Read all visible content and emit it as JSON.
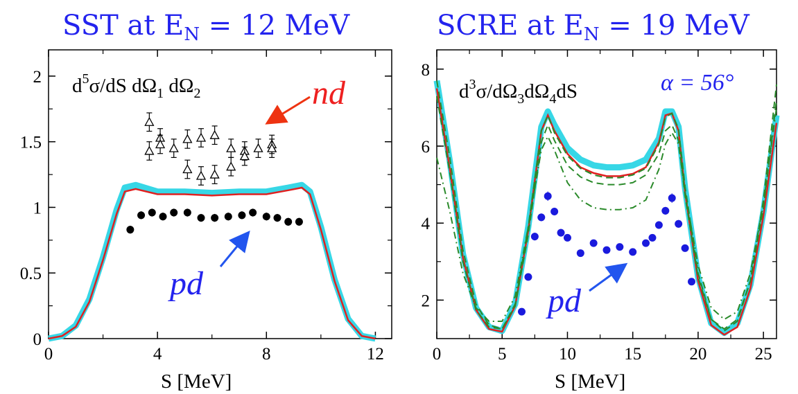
{
  "chart_data": [
    {
      "type": "scatter",
      "title": "SST at E",
      "title_sub": "N",
      "title_rest": " = 12 MeV",
      "xlabel": "S  [MeV]",
      "ylabel": "",
      "xlim": [
        0,
        12.6
      ],
      "ylim": [
        0,
        2.2
      ],
      "xticks": [
        0,
        4,
        8,
        12
      ],
      "xtick_labels": [
        "0",
        "4",
        "8",
        "12"
      ],
      "yticks": [
        0,
        0.5,
        1,
        1.5,
        2
      ],
      "ytick_labels": [
        "0",
        "0.5",
        "1",
        "1.5",
        "2"
      ],
      "annotation_formula": {
        "base": "d",
        "sup": "5",
        "rest": "σ/dS dΩ",
        "sub1": "1",
        "mid": " dΩ",
        "sub2": "2"
      },
      "label_nd": "nd",
      "label_pd": "pd",
      "colors": {
        "band": "#37d7e6",
        "red": "#e02020",
        "nd_arrow": "#ee3311",
        "pd_arrow": "#2255ee",
        "pd_text": "#2323ee",
        "nd_text": "#ee2020"
      },
      "series": [
        {
          "label": "theory band",
          "style": "band",
          "x": [
            0,
            0.5,
            1,
            1.5,
            2,
            2.5,
            2.8,
            3.2,
            4,
            5,
            6,
            7,
            8,
            8.8,
            9.3,
            9.6,
            10,
            10.5,
            11,
            11.5,
            12
          ],
          "y": [
            0,
            0.02,
            0.1,
            0.3,
            0.62,
            0.98,
            1.15,
            1.17,
            1.12,
            1.12,
            1.11,
            1.12,
            1.12,
            1.15,
            1.17,
            1.12,
            0.85,
            0.45,
            0.15,
            0.02,
            0
          ]
        },
        {
          "label": "theory red",
          "style": "red",
          "x": [
            0,
            0.5,
            1,
            1.5,
            2,
            2.5,
            2.8,
            3.2,
            4,
            5,
            6,
            7,
            8,
            8.8,
            9.3,
            9.6,
            10,
            10.5,
            11,
            11.5,
            12
          ],
          "y": [
            0,
            0.02,
            0.09,
            0.28,
            0.6,
            0.95,
            1.12,
            1.14,
            1.1,
            1.1,
            1.09,
            1.1,
            1.1,
            1.13,
            1.15,
            1.1,
            0.83,
            0.44,
            0.14,
            0.02,
            0
          ]
        },
        {
          "label": "pd data",
          "style": "filled-circles",
          "x": [
            3.0,
            3.4,
            3.8,
            4.2,
            4.6,
            5.1,
            5.6,
            6.1,
            6.6,
            7.1,
            7.5,
            8.0,
            8.4,
            8.8,
            9.2
          ],
          "y": [
            0.83,
            0.94,
            0.96,
            0.93,
            0.96,
            0.96,
            0.92,
            0.92,
            0.93,
            0.94,
            0.96,
            0.93,
            0.92,
            0.89,
            0.89
          ],
          "err": [
            0.03,
            0.03,
            0.03,
            0.03,
            0.03,
            0.03,
            0.03,
            0.03,
            0.03,
            0.03,
            0.03,
            0.03,
            0.03,
            0.03,
            0.03
          ]
        },
        {
          "label": "nd data",
          "style": "open-triangles",
          "x": [
            3.7,
            3.7,
            4.1,
            4.1,
            4.6,
            5.1,
            5.1,
            5.6,
            5.6,
            6.1,
            6.1,
            6.7,
            6.7,
            7.2,
            7.2,
            7.7,
            8.2,
            8.2
          ],
          "y": [
            1.65,
            1.43,
            1.53,
            1.48,
            1.45,
            1.52,
            1.29,
            1.53,
            1.24,
            1.55,
            1.25,
            1.45,
            1.31,
            1.43,
            1.39,
            1.45,
            1.48,
            1.45
          ],
          "err": [
            0.07,
            0.07,
            0.07,
            0.07,
            0.07,
            0.07,
            0.07,
            0.07,
            0.07,
            0.07,
            0.07,
            0.07,
            0.07,
            0.07,
            0.07,
            0.07,
            0.07,
            0.07
          ]
        }
      ]
    },
    {
      "type": "scatter",
      "title": "SCRE at E",
      "title_sub": "N",
      "title_rest": " = 19 MeV",
      "xlabel": "S  [MeV]",
      "ylabel": "",
      "xlim": [
        0,
        26
      ],
      "ylim": [
        1,
        8.5
      ],
      "xticks": [
        0,
        5,
        10,
        15,
        20,
        25
      ],
      "xtick_labels": [
        "0",
        "5",
        "10",
        "15",
        "20",
        "25"
      ],
      "yticks": [
        2,
        4,
        6,
        8
      ],
      "ytick_labels": [
        "2",
        "4",
        "6",
        "8"
      ],
      "annotation_formula": {
        "base": "d",
        "sup": "3",
        "rest": "σ/dΩ",
        "sub1": "3",
        "mid": "dΩ",
        "sub2": "4",
        "tail": "dS"
      },
      "alpha_label": "α = 56°",
      "label_pd": "pd",
      "colors": {
        "band": "#37d7e6",
        "red": "#e02020",
        "green": "#2a8a2a",
        "pd_arrow": "#2255ee",
        "pd_text": "#2323ee",
        "points": "#1a1add"
      },
      "series": [
        {
          "label": "theory band",
          "style": "band",
          "x": [
            0,
            1,
            2,
            3,
            4,
            5,
            6,
            7,
            8,
            8.5,
            9,
            10,
            11,
            12,
            13,
            14,
            15,
            16,
            17,
            17.5,
            18,
            18.5,
            19,
            20,
            21,
            22,
            23,
            24,
            25,
            26
          ],
          "y": [
            7.7,
            5.6,
            3.2,
            1.8,
            1.3,
            1.2,
            1.9,
            3.9,
            6.5,
            6.9,
            6.55,
            5.95,
            5.65,
            5.5,
            5.45,
            5.45,
            5.5,
            5.65,
            6.2,
            6.9,
            6.9,
            6.5,
            4.9,
            2.6,
            1.4,
            1.15,
            1.4,
            2.4,
            4.3,
            6.8
          ]
        },
        {
          "label": "theory red",
          "style": "red",
          "x": [
            0,
            1,
            2,
            3,
            4,
            5,
            6,
            7,
            8,
            8.5,
            9,
            10,
            11,
            12,
            13,
            14,
            15,
            16,
            17,
            17.5,
            18,
            18.5,
            19,
            20,
            21,
            22,
            23,
            24,
            25,
            26
          ],
          "y": [
            7.5,
            5.4,
            3.1,
            1.75,
            1.25,
            1.18,
            1.85,
            3.8,
            6.4,
            6.8,
            6.4,
            5.8,
            5.45,
            5.3,
            5.22,
            5.22,
            5.28,
            5.45,
            6.1,
            6.8,
            6.85,
            6.4,
            4.8,
            2.5,
            1.35,
            1.1,
            1.3,
            2.3,
            4.2,
            6.6
          ]
        },
        {
          "label": "green dashed 1",
          "style": "green-dash",
          "x": [
            0,
            1,
            2,
            3,
            4,
            5,
            6,
            7,
            8,
            8.5,
            9,
            10,
            11,
            12,
            13,
            14,
            15,
            16,
            17,
            17.5,
            18,
            18.5,
            19,
            20,
            21,
            22,
            23,
            24,
            25,
            26
          ],
          "y": [
            7.7,
            5.7,
            3.3,
            1.9,
            1.35,
            1.25,
            1.9,
            3.9,
            6.4,
            6.8,
            6.35,
            5.75,
            5.42,
            5.25,
            5.18,
            5.18,
            5.25,
            5.42,
            6.05,
            6.75,
            6.85,
            6.45,
            4.95,
            2.7,
            1.5,
            1.2,
            1.45,
            2.5,
            4.6,
            7.6
          ]
        },
        {
          "label": "green dashed 2",
          "style": "green-dash",
          "x": [
            0,
            1,
            2,
            3,
            4,
            5,
            6,
            7,
            8,
            8.5,
            9,
            10,
            11,
            12,
            13,
            14,
            15,
            16,
            17,
            17.5,
            18,
            18.5,
            19,
            20,
            21,
            22,
            23,
            24,
            25,
            26
          ],
          "y": [
            7.3,
            5.3,
            3.0,
            1.75,
            1.3,
            1.25,
            1.85,
            3.7,
            6.1,
            6.55,
            6.15,
            5.5,
            5.2,
            5.05,
            5.0,
            5.0,
            5.05,
            5.25,
            5.8,
            6.4,
            6.55,
            6.15,
            4.7,
            2.6,
            1.5,
            1.25,
            1.5,
            2.5,
            4.4,
            7.2
          ]
        },
        {
          "label": "green dash-dot",
          "style": "green-dashdot",
          "x": [
            0,
            1,
            2,
            3,
            4,
            5,
            6,
            7,
            8,
            8.5,
            9,
            10,
            11,
            12,
            13,
            14,
            15,
            16,
            17,
            17.5,
            18,
            18.5,
            19,
            20,
            21,
            22,
            23,
            24,
            25,
            26
          ],
          "y": [
            5.7,
            4.3,
            2.7,
            1.8,
            1.45,
            1.45,
            2.1,
            3.9,
            5.9,
            6.25,
            5.9,
            5.05,
            4.6,
            4.4,
            4.35,
            4.35,
            4.4,
            4.6,
            5.4,
            6.05,
            6.35,
            6.05,
            4.8,
            2.9,
            1.8,
            1.5,
            1.7,
            2.7,
            4.5,
            7.0
          ]
        },
        {
          "label": "pd data",
          "style": "filled-circles",
          "x": [
            6.5,
            7.0,
            7.5,
            8.0,
            8.5,
            9.0,
            9.5,
            10.0,
            11.0,
            12.0,
            13.0,
            14.0,
            15.0,
            16.0,
            16.5,
            17.0,
            17.5,
            18.0,
            18.5,
            19.0,
            19.5
          ],
          "y": [
            1.7,
            2.6,
            3.65,
            4.15,
            4.7,
            4.3,
            3.75,
            3.62,
            3.22,
            3.48,
            3.3,
            3.38,
            3.25,
            3.48,
            3.62,
            3.95,
            4.32,
            4.65,
            3.98,
            3.35,
            2.48
          ],
          "err": [
            0.08,
            0.08,
            0.1,
            0.1,
            0.12,
            0.1,
            0.1,
            0.08,
            0.08,
            0.08,
            0.08,
            0.08,
            0.08,
            0.08,
            0.08,
            0.1,
            0.1,
            0.12,
            0.1,
            0.08,
            0.08
          ]
        }
      ]
    }
  ]
}
